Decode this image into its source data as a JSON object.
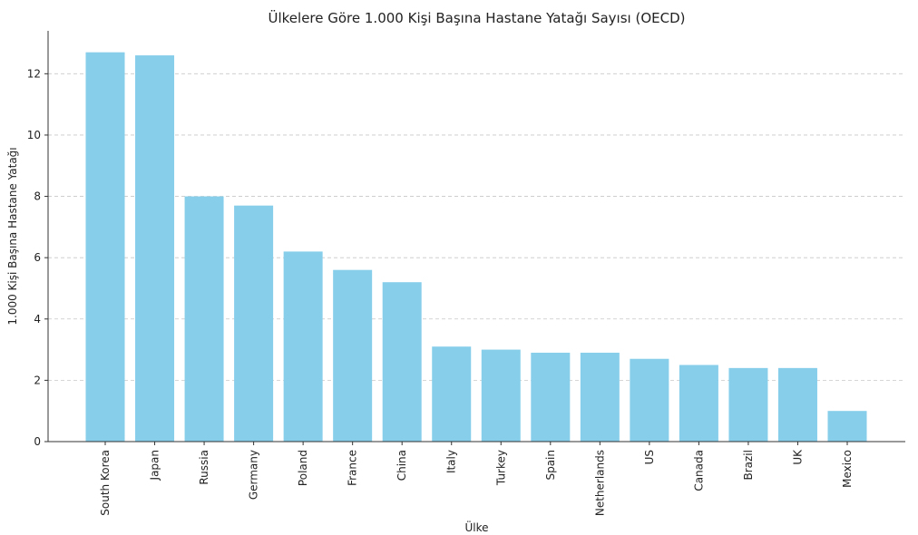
{
  "chart_data": {
    "type": "bar",
    "title": "Ülkelere Göre 1.000 Kişi Başına Hastane Yatağı Sayısı (OECD)",
    "xlabel": "Ülke",
    "ylabel": "1.000 Kişi Başına Hastane Yatağı",
    "categories": [
      "South Korea",
      "Japan",
      "Russia",
      "Germany",
      "Poland",
      "France",
      "China",
      "Italy",
      "Turkey",
      "Spain",
      "Netherlands",
      "US",
      "Canada",
      "Brazil",
      "UK",
      "Mexico"
    ],
    "values": [
      12.7,
      12.6,
      8.0,
      7.7,
      6.2,
      5.6,
      5.2,
      3.1,
      3.0,
      2.9,
      2.9,
      2.7,
      2.5,
      2.4,
      2.4,
      1.0
    ],
    "ylim": [
      0,
      13.4
    ],
    "yticks": [
      0,
      2,
      4,
      6,
      8,
      10,
      12
    ],
    "grid": "horizontal dashed",
    "bar_color": "#87CEEB"
  }
}
